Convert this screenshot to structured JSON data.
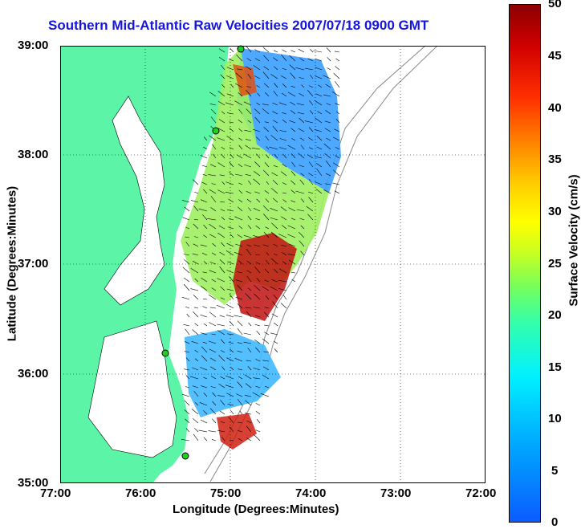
{
  "title": "Southern Mid-Atlantic Raw Velocities 2007/07/18 0900 GMT",
  "x_axis": {
    "label": "Longitude (Degrees:Minutes)",
    "ticks": [
      "77:00",
      "76:00",
      "75:00",
      "74:00",
      "73:00",
      "72:00"
    ]
  },
  "y_axis": {
    "label": "Latitude (Degrees:Minutes)",
    "ticks": [
      "39:00",
      "38:00",
      "37:00",
      "36:00",
      "35:00"
    ]
  },
  "colorbar": {
    "label": "Surface Velocity (cm/s)",
    "ticks": [
      "50",
      "45",
      "40",
      "35",
      "30",
      "25",
      "20",
      "15",
      "10",
      "5",
      "0"
    ],
    "range": [
      0,
      50
    ],
    "colors": [
      "#0a5cff",
      "#00f0ff",
      "#70ff60",
      "#ffff00",
      "#ff9000",
      "#d00000",
      "#8b0000"
    ]
  },
  "map": {
    "lon_range": [
      -77,
      -72
    ],
    "lat_range": [
      35,
      39
    ],
    "land_color": "#5cf5a8",
    "grid": "dotted",
    "station_markers": [
      "green-circle",
      "green-circle",
      "green-circle",
      "green-circle"
    ]
  }
}
